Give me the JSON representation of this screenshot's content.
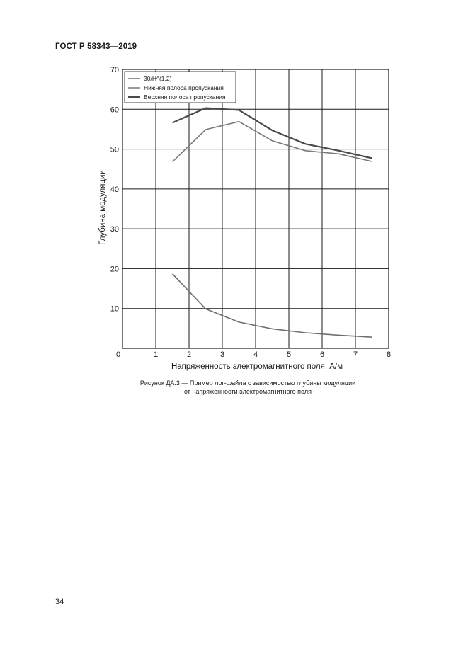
{
  "document": {
    "header": "ГОСТ Р 58343—2019",
    "caption_line1": "Рисунок ДА.3 — Пример лог-файла с зависимостью глубины модуляции",
    "caption_line2": "от напряженности электромагнитного поля",
    "page_number": "34"
  },
  "chart_data": {
    "type": "line",
    "xlabel": "Напряженность электромагнитного поля, А/м",
    "ylabel": "Глубина модуляции",
    "xlim": [
      0,
      8
    ],
    "ylim": [
      0,
      70
    ],
    "x_ticks": [
      0,
      1,
      2,
      3,
      4,
      5,
      6,
      7,
      8
    ],
    "y_ticks": [
      0,
      10,
      20,
      30,
      40,
      50,
      60,
      70
    ],
    "x_tick_labels": [
      "0",
      "1",
      "2",
      "3",
      "4",
      "5",
      "6",
      "7",
      "8"
    ],
    "y_tick_labels": [
      "0",
      "10",
      "20",
      "30",
      "40",
      "50",
      "60",
      "70"
    ],
    "grid": true,
    "legend_position": "top-left",
    "series": [
      {
        "name": "30/H^(1,2)",
        "color": "#6e6e6e",
        "x": [
          1.5,
          2.5,
          3.5,
          4.5,
          5.5,
          6.5,
          7.5
        ],
        "y": [
          18.7,
          9.9,
          6.6,
          4.9,
          3.9,
          3.3,
          2.8
        ]
      },
      {
        "name": "Нижняя полоса пропускания",
        "color": "#7a7a7a",
        "x": [
          1.5,
          2.5,
          3.5,
          4.5,
          5.5,
          6.5,
          7.5
        ],
        "y": [
          46.8,
          54.9,
          56.9,
          52.1,
          49.6,
          48.8,
          46.9
        ]
      },
      {
        "name": "Верхняя полоса пропускания",
        "color": "#4a4a4a",
        "x": [
          1.5,
          2.5,
          3.5,
          4.5,
          5.5,
          6.5,
          7.5
        ],
        "y": [
          56.6,
          60.3,
          59.8,
          54.7,
          51.3,
          49.6,
          47.7
        ]
      }
    ]
  }
}
